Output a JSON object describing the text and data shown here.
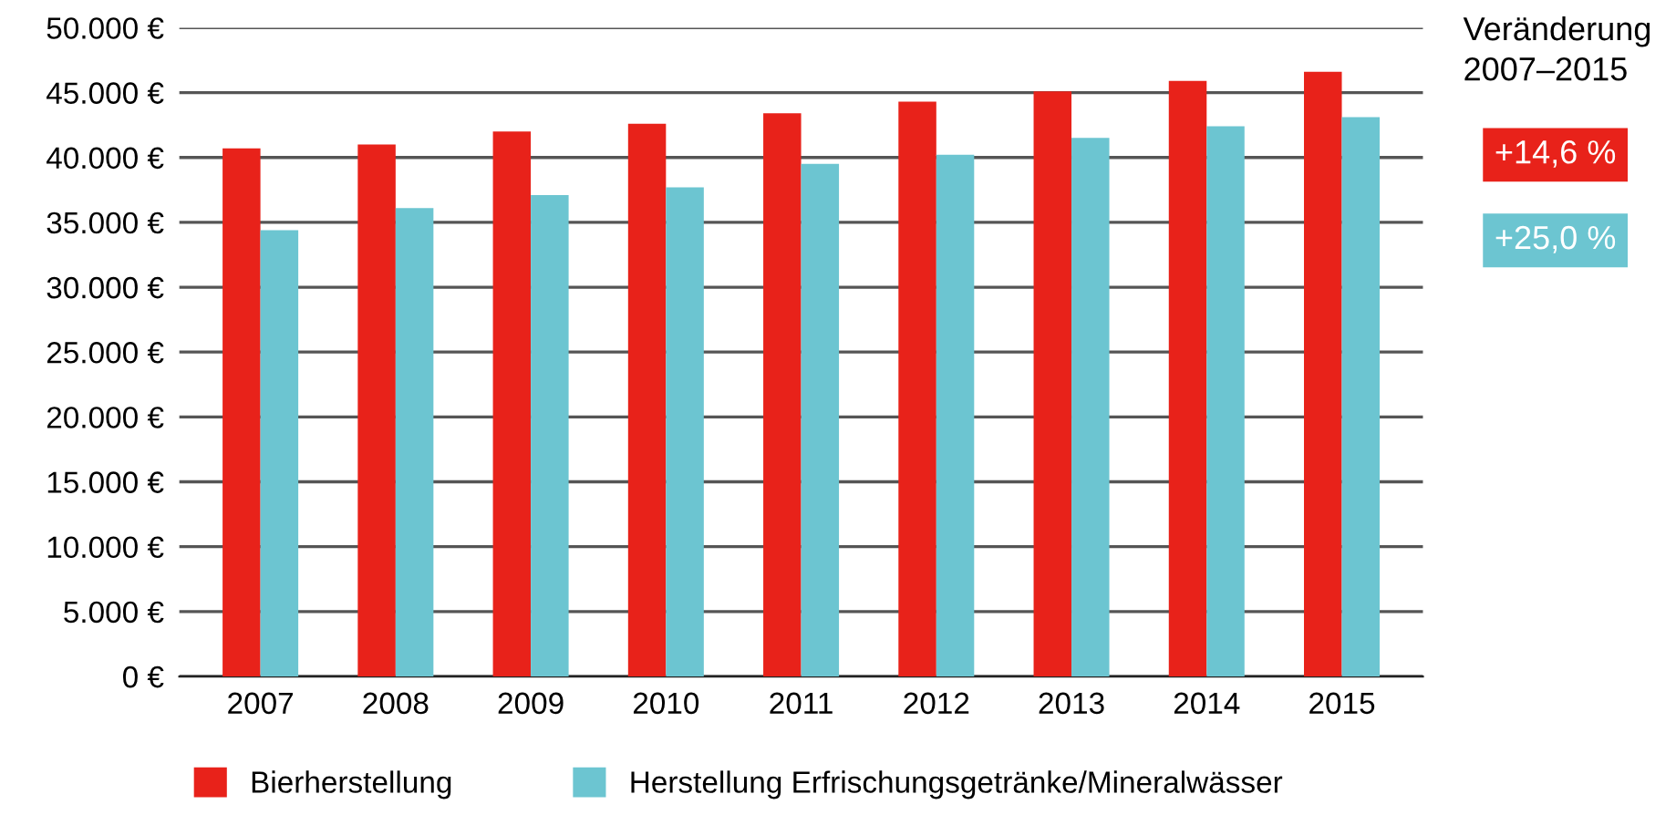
{
  "chart_data": {
    "type": "bar",
    "categories": [
      "2007",
      "2008",
      "2009",
      "2010",
      "2011",
      "2012",
      "2013",
      "2014",
      "2015"
    ],
    "series": [
      {
        "name": "Bierherstellung",
        "color": "#e8221a",
        "values": [
          40700,
          41000,
          42000,
          42600,
          43400,
          44300,
          45100,
          45900,
          46600
        ]
      },
      {
        "name": "Herstellung Erfrischungsgetränke/Mineralwässer",
        "color": "#6cc5d1",
        "values": [
          34400,
          36100,
          37100,
          37700,
          39500,
          40200,
          41500,
          42400,
          43100
        ]
      }
    ],
    "ylim": [
      0,
      50000
    ],
    "yticks": [
      {
        "value": 0,
        "label": "0 €"
      },
      {
        "value": 5000,
        "label": "5.000 €"
      },
      {
        "value": 10000,
        "label": "10.000 €"
      },
      {
        "value": 15000,
        "label": "15.000 €"
      },
      {
        "value": 20000,
        "label": "20.000 €"
      },
      {
        "value": 25000,
        "label": "25.000 €"
      },
      {
        "value": 30000,
        "label": "30.000 €"
      },
      {
        "value": 35000,
        "label": "35.000 €"
      },
      {
        "value": 40000,
        "label": "40.000 €"
      },
      {
        "value": 45000,
        "label": "45.000 €"
      },
      {
        "value": 50000,
        "label": "50.000 €"
      }
    ],
    "grid": "y",
    "legend": "bottom",
    "annotations": [
      "Veränderung\n2007–2015",
      "+14,6 %",
      "+25,0 %"
    ]
  }
}
